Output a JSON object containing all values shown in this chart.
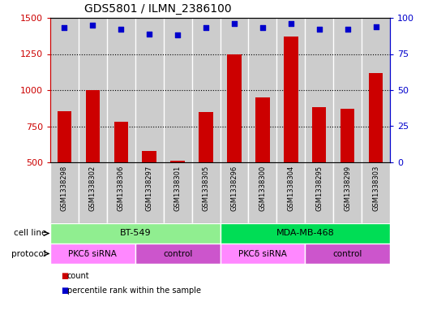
{
  "title": "GDS5801 / ILMN_2386100",
  "samples": [
    "GSM1338298",
    "GSM1338302",
    "GSM1338306",
    "GSM1338297",
    "GSM1338301",
    "GSM1338305",
    "GSM1338296",
    "GSM1338300",
    "GSM1338304",
    "GSM1338295",
    "GSM1338299",
    "GSM1338303"
  ],
  "counts": [
    855,
    1000,
    780,
    580,
    510,
    850,
    1250,
    950,
    1370,
    880,
    870,
    1120
  ],
  "percentiles": [
    93,
    95,
    92,
    89,
    88,
    93,
    96,
    93,
    96,
    92,
    92,
    94
  ],
  "bar_color": "#cc0000",
  "dot_color": "#0000cc",
  "ylim_left": [
    500,
    1500
  ],
  "ylim_right": [
    0,
    100
  ],
  "yticks_left": [
    500,
    750,
    1000,
    1250,
    1500
  ],
  "yticks_right": [
    0,
    25,
    50,
    75,
    100
  ],
  "cell_line_groups": [
    {
      "label": "BT-549",
      "start": 0,
      "end": 6,
      "color": "#90ee90"
    },
    {
      "label": "MDA-MB-468",
      "start": 6,
      "end": 12,
      "color": "#00dd55"
    }
  ],
  "protocol_groups": [
    {
      "label": "PKCδ siRNA",
      "start": 0,
      "end": 3,
      "color": "#ff88ff"
    },
    {
      "label": "control",
      "start": 3,
      "end": 6,
      "color": "#cc55cc"
    },
    {
      "label": "PKCδ siRNA",
      "start": 6,
      "end": 9,
      "color": "#ff88ff"
    },
    {
      "label": "control",
      "start": 9,
      "end": 12,
      "color": "#cc55cc"
    }
  ],
  "sample_bg_color": "#cccccc",
  "sample_sep_color": "#ffffff",
  "legend_count_color": "#cc0000",
  "legend_dot_color": "#0000cc",
  "label_left": "cell line",
  "label_left2": "protocol"
}
